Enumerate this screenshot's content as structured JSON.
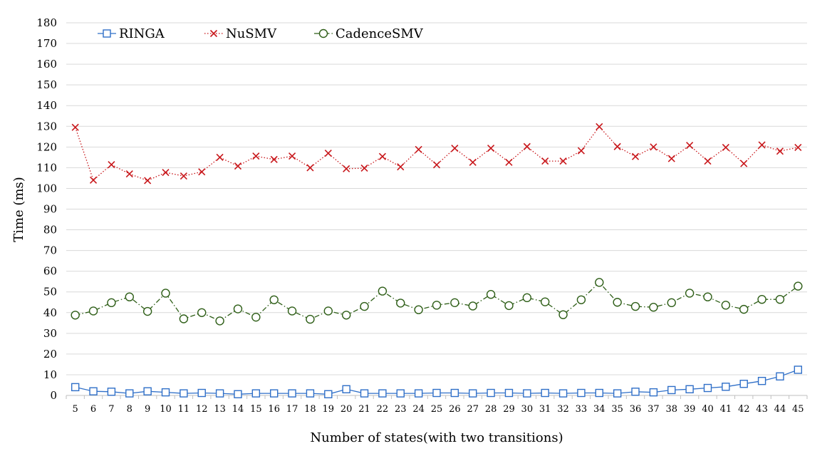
{
  "chart_data": {
    "type": "line",
    "title": "",
    "xlabel": "Number of states(with two transitions)",
    "ylabel": "Time (ms)",
    "ylim": [
      0,
      180
    ],
    "ytick_step": 10,
    "grid": "horizontal",
    "legend_position": "top-left",
    "x": [
      5,
      6,
      7,
      8,
      9,
      10,
      11,
      12,
      13,
      14,
      15,
      16,
      17,
      18,
      19,
      20,
      21,
      22,
      23,
      24,
      25,
      26,
      27,
      28,
      29,
      30,
      31,
      32,
      33,
      34,
      35,
      36,
      37,
      38,
      39,
      40,
      41,
      42,
      43,
      44,
      45
    ],
    "series": [
      {
        "name": "RINGA",
        "color": "#2f6fc8",
        "marker": "square",
        "line": "solid",
        "values": [
          4,
          2,
          1.8,
          1,
          2,
          1.5,
          1,
          1.2,
          1,
          0.6,
          1,
          1,
          1,
          1,
          0.6,
          3,
          1,
          1,
          1,
          1,
          1.2,
          1.2,
          1,
          1.2,
          1.2,
          1,
          1.2,
          1,
          1.2,
          1.2,
          1,
          1.8,
          1.5,
          2.6,
          3,
          3.6,
          4.2,
          5.6,
          7,
          9.2,
          12.4
        ]
      },
      {
        "name": "NuSMV",
        "color": "#c8171b",
        "marker": "x",
        "line": "dotted",
        "values": [
          129.5,
          104,
          111.5,
          107,
          103.8,
          107.7,
          106,
          108,
          115,
          110.8,
          115.6,
          114,
          115.6,
          110,
          117,
          109.5,
          109.8,
          115.4,
          110.4,
          118.8,
          111.4,
          119.4,
          112.6,
          119.4,
          112.6,
          120.2,
          113.2,
          113.2,
          118.2,
          129.8,
          120.2,
          115.4,
          120,
          114.4,
          120.8,
          113.2,
          119.8,
          112,
          121,
          118,
          119.8
        ]
      },
      {
        "name": "CadenceSMV",
        "color": "#2e5e17",
        "marker": "circle",
        "line": "dashdot",
        "values": [
          38.8,
          40.8,
          44.8,
          47.6,
          40.6,
          49.4,
          37,
          40,
          36,
          41.8,
          37.8,
          46.2,
          40.8,
          36.8,
          40.8,
          38.8,
          43,
          50.4,
          44.6,
          41.4,
          43.6,
          44.8,
          43.2,
          48.8,
          43.4,
          47.2,
          45.2,
          39,
          46.2,
          54.6,
          45,
          43,
          42.6,
          44.8,
          49.4,
          47.6,
          43.6,
          41.6,
          46.4,
          46.4,
          52.8
        ]
      }
    ]
  }
}
